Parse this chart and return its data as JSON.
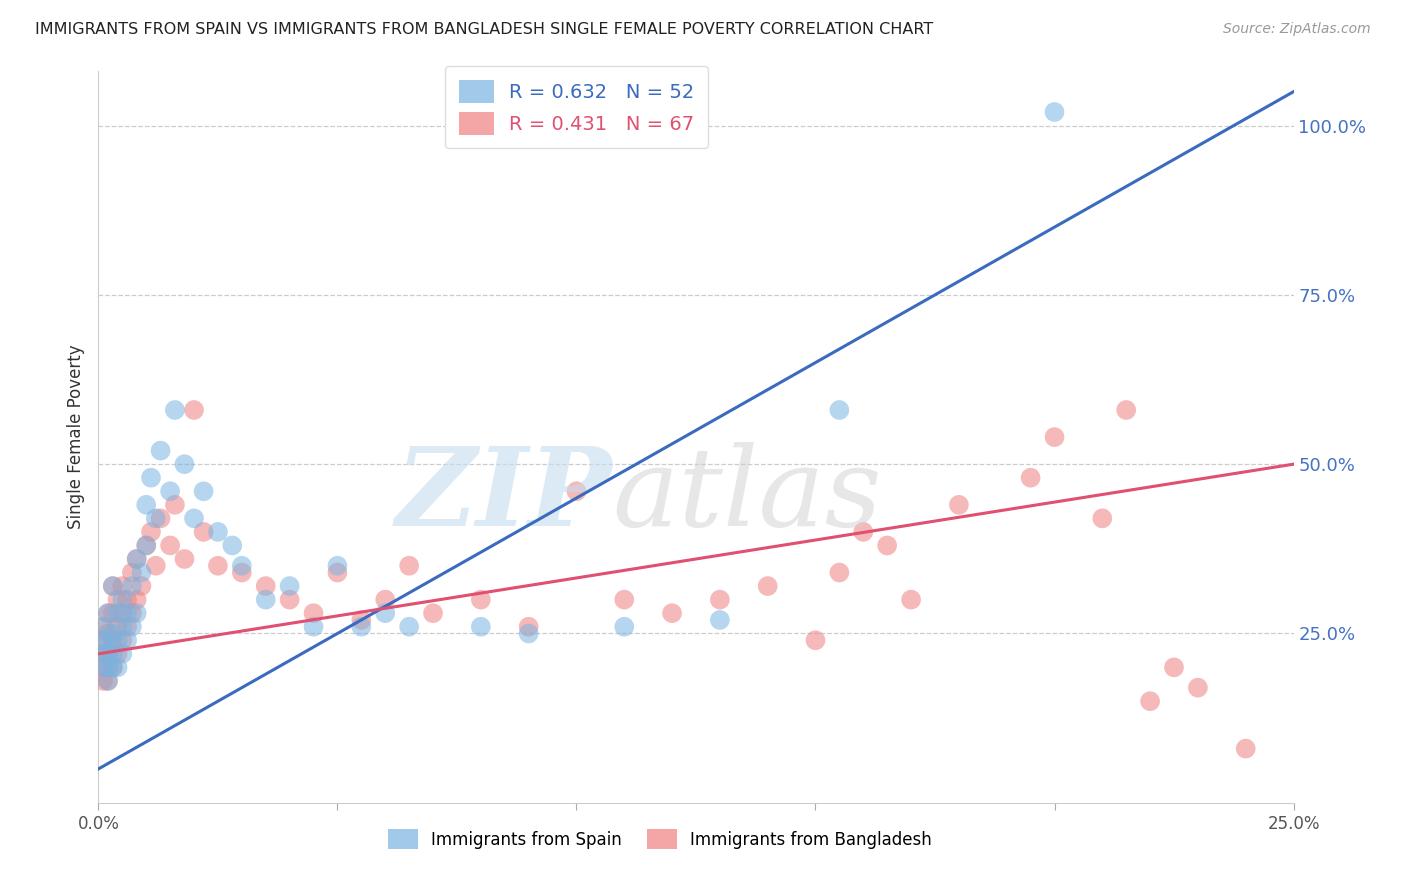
{
  "title": "IMMIGRANTS FROM SPAIN VS IMMIGRANTS FROM BANGLADESH SINGLE FEMALE POVERTY CORRELATION CHART",
  "source": "Source: ZipAtlas.com",
  "ylabel": "Single Female Poverty",
  "right_ytick_labels": [
    "100.0%",
    "75.0%",
    "50.0%",
    "25.0%"
  ],
  "right_ytick_values": [
    1.0,
    0.75,
    0.5,
    0.25
  ],
  "spain_color": "#7ab3e0",
  "bangladesh_color": "#f08080",
  "trendline_spain_color": "#3a6bbf",
  "trendline_bangladesh_color": "#e05070",
  "background_color": "#ffffff",
  "grid_color": "#cccccc",
  "spain_x": [
    0.001,
    0.001,
    0.001,
    0.001,
    0.002,
    0.002,
    0.002,
    0.002,
    0.002,
    0.003,
    0.003,
    0.003,
    0.003,
    0.004,
    0.004,
    0.004,
    0.005,
    0.005,
    0.005,
    0.006,
    0.006,
    0.007,
    0.007,
    0.008,
    0.008,
    0.009,
    0.01,
    0.01,
    0.011,
    0.012,
    0.013,
    0.015,
    0.016,
    0.018,
    0.02,
    0.022,
    0.025,
    0.028,
    0.03,
    0.035,
    0.04,
    0.045,
    0.05,
    0.055,
    0.06,
    0.065,
    0.08,
    0.09,
    0.11,
    0.13,
    0.155,
    0.2
  ],
  "spain_y": [
    0.2,
    0.22,
    0.24,
    0.26,
    0.18,
    0.2,
    0.22,
    0.24,
    0.28,
    0.2,
    0.22,
    0.25,
    0.32,
    0.2,
    0.24,
    0.28,
    0.22,
    0.26,
    0.3,
    0.24,
    0.28,
    0.26,
    0.32,
    0.28,
    0.36,
    0.34,
    0.38,
    0.44,
    0.48,
    0.42,
    0.52,
    0.46,
    0.58,
    0.5,
    0.42,
    0.46,
    0.4,
    0.38,
    0.35,
    0.3,
    0.32,
    0.26,
    0.35,
    0.26,
    0.28,
    0.26,
    0.26,
    0.25,
    0.26,
    0.27,
    0.58,
    1.02
  ],
  "bangladesh_x": [
    0.001,
    0.001,
    0.001,
    0.001,
    0.001,
    0.002,
    0.002,
    0.002,
    0.002,
    0.002,
    0.003,
    0.003,
    0.003,
    0.003,
    0.004,
    0.004,
    0.004,
    0.005,
    0.005,
    0.005,
    0.006,
    0.006,
    0.007,
    0.007,
    0.008,
    0.008,
    0.009,
    0.01,
    0.011,
    0.012,
    0.013,
    0.015,
    0.016,
    0.018,
    0.02,
    0.022,
    0.025,
    0.03,
    0.035,
    0.04,
    0.045,
    0.05,
    0.055,
    0.06,
    0.065,
    0.07,
    0.08,
    0.09,
    0.1,
    0.11,
    0.12,
    0.13,
    0.14,
    0.15,
    0.155,
    0.16,
    0.165,
    0.17,
    0.18,
    0.195,
    0.2,
    0.21,
    0.215,
    0.22,
    0.225,
    0.23,
    0.24
  ],
  "bangladesh_y": [
    0.18,
    0.2,
    0.22,
    0.24,
    0.26,
    0.18,
    0.2,
    0.22,
    0.25,
    0.28,
    0.2,
    0.24,
    0.28,
    0.32,
    0.22,
    0.26,
    0.3,
    0.24,
    0.28,
    0.32,
    0.26,
    0.3,
    0.28,
    0.34,
    0.3,
    0.36,
    0.32,
    0.38,
    0.4,
    0.35,
    0.42,
    0.38,
    0.44,
    0.36,
    0.58,
    0.4,
    0.35,
    0.34,
    0.32,
    0.3,
    0.28,
    0.34,
    0.27,
    0.3,
    0.35,
    0.28,
    0.3,
    0.26,
    0.46,
    0.3,
    0.28,
    0.3,
    0.32,
    0.24,
    0.34,
    0.4,
    0.38,
    0.3,
    0.44,
    0.48,
    0.54,
    0.42,
    0.58,
    0.15,
    0.2,
    0.17,
    0.08
  ],
  "spain_trend_x0": 0.0,
  "spain_trend_y0": 0.05,
  "spain_trend_x1": 0.25,
  "spain_trend_y1": 1.05,
  "bang_trend_x0": 0.0,
  "bang_trend_y0": 0.22,
  "bang_trend_x1": 0.25,
  "bang_trend_y1": 0.5,
  "xlim": [
    0.0,
    0.25
  ],
  "ylim": [
    0.0,
    1.08
  ],
  "figsize": [
    14.06,
    8.92
  ],
  "dpi": 100
}
